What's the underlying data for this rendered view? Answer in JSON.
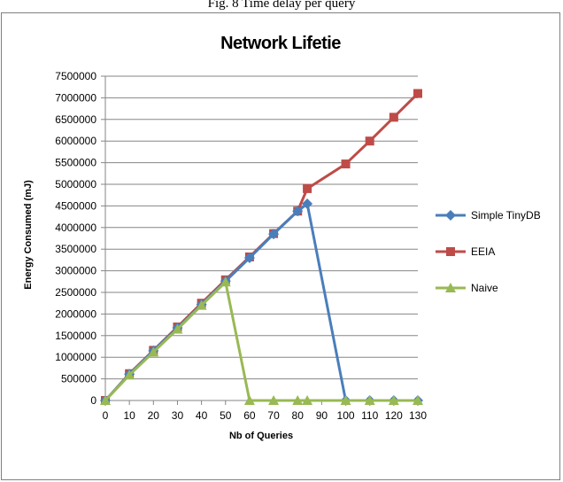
{
  "caption": "Fig. 8 Time delay per query",
  "chart_data": {
    "type": "line",
    "title": "Network Lifetie",
    "xlabel": "Nb of Queries",
    "ylabel": "Energy Consumed (mJ)",
    "x_ticks": [
      0,
      10,
      20,
      30,
      40,
      50,
      60,
      70,
      80,
      90,
      100,
      110,
      120,
      130
    ],
    "y_ticks": [
      0,
      500000,
      1000000,
      1500000,
      2000000,
      2500000,
      3000000,
      3500000,
      4000000,
      4500000,
      5000000,
      5500000,
      6000000,
      6500000,
      7000000,
      7500000
    ],
    "xlim": [
      0,
      130
    ],
    "ylim": [
      0,
      7500000
    ],
    "grid": "horizontal",
    "legend_position": "right",
    "series": [
      {
        "name": "Simple TinyDB",
        "color": "#4a7ebb",
        "marker": "diamond",
        "points": [
          [
            0,
            0
          ],
          [
            10,
            610000
          ],
          [
            20,
            1150000
          ],
          [
            30,
            1680000
          ],
          [
            40,
            2220000
          ],
          [
            50,
            2760000
          ],
          [
            60,
            3300000
          ],
          [
            70,
            3850000
          ],
          [
            80,
            4380000
          ],
          [
            84,
            4550000
          ],
          [
            100,
            0
          ],
          [
            110,
            0
          ],
          [
            120,
            0
          ],
          [
            130,
            0
          ]
        ]
      },
      {
        "name": "EEIA",
        "color": "#be4b48",
        "marker": "square",
        "points": [
          [
            0,
            0
          ],
          [
            10,
            620000
          ],
          [
            20,
            1160000
          ],
          [
            30,
            1700000
          ],
          [
            40,
            2250000
          ],
          [
            50,
            2790000
          ],
          [
            60,
            3320000
          ],
          [
            70,
            3860000
          ],
          [
            80,
            4380000
          ],
          [
            84,
            4900000
          ],
          [
            100,
            5470000
          ],
          [
            110,
            6000000
          ],
          [
            120,
            6550000
          ],
          [
            130,
            7100000
          ]
        ]
      },
      {
        "name": "Naive",
        "color": "#98b954",
        "marker": "triangle",
        "points": [
          [
            0,
            0
          ],
          [
            10,
            590000
          ],
          [
            20,
            1120000
          ],
          [
            30,
            1650000
          ],
          [
            40,
            2200000
          ],
          [
            50,
            2740000
          ],
          [
            60,
            0
          ],
          [
            70,
            0
          ],
          [
            80,
            0
          ],
          [
            84,
            0
          ],
          [
            100,
            0
          ],
          [
            110,
            0
          ],
          [
            120,
            0
          ],
          [
            130,
            0
          ]
        ]
      }
    ]
  }
}
